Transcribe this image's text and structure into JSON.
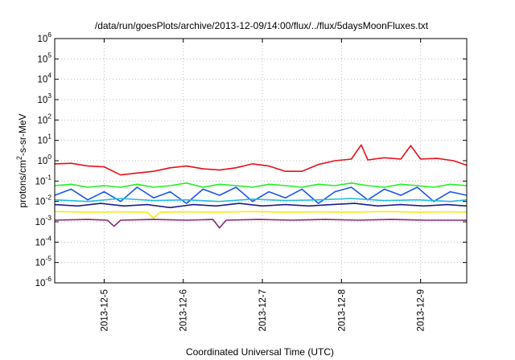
{
  "chart_data": {
    "type": "line",
    "title": "/data/run/goesPlots/archive/2013-12-09/14:00/flux/../flux/5daysMoonFluxes.txt",
    "xlabel": "Coordinated Universal Time (UTC)",
    "ylabel": "protons/cm²-s-sr-MeV",
    "ylabel_parts": {
      "pre": "protons/cm",
      "sup": "2",
      "post": "-s-sr-MeV"
    },
    "y_scale": "log",
    "ylim": [
      1e-06,
      1000000.0
    ],
    "y_ticks": [
      {
        "value": 1e-06,
        "base": "10",
        "exp": "-6"
      },
      {
        "value": 1e-05,
        "base": "10",
        "exp": "-5"
      },
      {
        "value": 0.0001,
        "base": "10",
        "exp": "-4"
      },
      {
        "value": 0.001,
        "base": "10",
        "exp": "-3"
      },
      {
        "value": 0.01,
        "base": "10",
        "exp": "-2"
      },
      {
        "value": 0.1,
        "base": "10",
        "exp": "-1"
      },
      {
        "value": 1,
        "base": "10",
        "exp": "0"
      },
      {
        "value": 10,
        "base": "10",
        "exp": "1"
      },
      {
        "value": 100,
        "base": "10",
        "exp": "2"
      },
      {
        "value": 1000,
        "base": "10",
        "exp": "3"
      },
      {
        "value": 10000,
        "base": "10",
        "exp": "4"
      },
      {
        "value": 100000,
        "base": "10",
        "exp": "5"
      },
      {
        "value": 1000000,
        "base": "10",
        "exp": "6"
      }
    ],
    "xlim": [
      "2013-12-04 09:00",
      "2013-12-09 14:00"
    ],
    "x_ticks": [
      {
        "value": "2013-12-05 00:00",
        "label": "2013-12-5"
      },
      {
        "value": "2013-12-06 00:00",
        "label": "2013-12-6"
      },
      {
        "value": "2013-12-07 00:00",
        "label": "2013-12-7"
      },
      {
        "value": "2013-12-08 00:00",
        "label": "2013-12-8"
      },
      {
        "value": "2013-12-09 00:00",
        "label": "2013-12-9"
      }
    ],
    "grid": true,
    "legend": "none",
    "series": [
      {
        "color": "#e8101a",
        "x": [
          "2013-12-04 09:00",
          "2013-12-04 14:00",
          "2013-12-04 19:00",
          "2013-12-05 00:00",
          "2013-12-05 05:00",
          "2013-12-05 10:00",
          "2013-12-05 15:00",
          "2013-12-05 20:00",
          "2013-12-06 01:00",
          "2013-12-06 06:00",
          "2013-12-06 11:00",
          "2013-12-06 16:00",
          "2013-12-06 21:00",
          "2013-12-07 02:00",
          "2013-12-07 07:00",
          "2013-12-07 12:00",
          "2013-12-07 17:00",
          "2013-12-07 22:00",
          "2013-12-08 03:00",
          "2013-12-08 06:00",
          "2013-12-08 08:00",
          "2013-12-08 13:00",
          "2013-12-08 18:00",
          "2013-12-08 21:00",
          "2013-12-09 00:00",
          "2013-12-09 05:00",
          "2013-12-09 10:00",
          "2013-12-09 14:00"
        ],
        "values": [
          0.7,
          0.75,
          0.55,
          0.5,
          0.2,
          0.25,
          0.3,
          0.45,
          0.55,
          0.4,
          0.35,
          0.45,
          0.7,
          0.55,
          0.3,
          0.3,
          0.65,
          1.0,
          1.2,
          6.0,
          1.1,
          1.4,
          1.2,
          5.5,
          1.2,
          1.3,
          1.0,
          0.6
        ]
      },
      {
        "color": "#22ee22",
        "x": [
          "2013-12-04 09:00",
          "2013-12-04 14:00",
          "2013-12-04 19:00",
          "2013-12-05 00:00",
          "2013-12-05 05:00",
          "2013-12-05 10:00",
          "2013-12-05 15:00",
          "2013-12-05 20:00",
          "2013-12-06 01:00",
          "2013-12-06 06:00",
          "2013-12-06 11:00",
          "2013-12-06 16:00",
          "2013-12-06 21:00",
          "2013-12-07 02:00",
          "2013-12-07 07:00",
          "2013-12-07 12:00",
          "2013-12-07 17:00",
          "2013-12-07 22:00",
          "2013-12-08 03:00",
          "2013-12-08 08:00",
          "2013-12-08 13:00",
          "2013-12-08 18:00",
          "2013-12-08 23:00",
          "2013-12-09 04:00",
          "2013-12-09 09:00",
          "2013-12-09 14:00"
        ],
        "values": [
          0.06,
          0.07,
          0.05,
          0.06,
          0.05,
          0.07,
          0.05,
          0.06,
          0.08,
          0.05,
          0.07,
          0.06,
          0.05,
          0.07,
          0.06,
          0.05,
          0.07,
          0.06,
          0.08,
          0.06,
          0.05,
          0.07,
          0.06,
          0.05,
          0.07,
          0.06
        ]
      },
      {
        "color": "#1a55ee",
        "x": [
          "2013-12-04 09:00",
          "2013-12-04 14:00",
          "2013-12-04 19:00",
          "2013-12-05 00:00",
          "2013-12-05 05:00",
          "2013-12-05 10:00",
          "2013-12-05 15:00",
          "2013-12-05 20:00",
          "2013-12-06 01:00",
          "2013-12-06 06:00",
          "2013-12-06 11:00",
          "2013-12-06 16:00",
          "2013-12-06 21:00",
          "2013-12-07 02:00",
          "2013-12-07 07:00",
          "2013-12-07 12:00",
          "2013-12-07 17:00",
          "2013-12-07 22:00",
          "2013-12-08 03:00",
          "2013-12-08 08:00",
          "2013-12-08 13:00",
          "2013-12-08 18:00",
          "2013-12-08 23:00",
          "2013-12-09 04:00",
          "2013-12-09 09:00",
          "2013-12-09 14:00"
        ],
        "values": [
          0.02,
          0.04,
          0.012,
          0.03,
          0.01,
          0.05,
          0.015,
          0.03,
          0.008,
          0.04,
          0.02,
          0.05,
          0.01,
          0.03,
          0.015,
          0.04,
          0.008,
          0.03,
          0.05,
          0.012,
          0.04,
          0.02,
          0.05,
          0.01,
          0.03,
          0.02
        ]
      },
      {
        "color": "#22bcdd",
        "x": [
          "2013-12-04 09:00",
          "2013-12-04 19:00",
          "2013-12-05 05:00",
          "2013-12-05 15:00",
          "2013-12-06 01:00",
          "2013-12-06 11:00",
          "2013-12-06 21:00",
          "2013-12-07 07:00",
          "2013-12-07 17:00",
          "2013-12-08 03:00",
          "2013-12-08 13:00",
          "2013-12-08 23:00",
          "2013-12-09 09:00",
          "2013-12-09 14:00"
        ],
        "values": [
          0.012,
          0.01,
          0.014,
          0.011,
          0.012,
          0.01,
          0.013,
          0.011,
          0.012,
          0.014,
          0.011,
          0.012,
          0.01,
          0.012
        ]
      },
      {
        "color": "#1b1b8c",
        "x": [
          "2013-12-04 09:00",
          "2013-12-04 16:00",
          "2013-12-04 23:00",
          "2013-12-05 06:00",
          "2013-12-05 13:00",
          "2013-12-05 20:00",
          "2013-12-06 03:00",
          "2013-12-06 10:00",
          "2013-12-06 17:00",
          "2013-12-07 00:00",
          "2013-12-07 07:00",
          "2013-12-07 14:00",
          "2013-12-07 21:00",
          "2013-12-08 04:00",
          "2013-12-08 11:00",
          "2013-12-08 18:00",
          "2013-12-09 01:00",
          "2013-12-09 08:00",
          "2013-12-09 14:00"
        ],
        "values": [
          0.007,
          0.006,
          0.008,
          0.006,
          0.007,
          0.005,
          0.007,
          0.006,
          0.008,
          0.006,
          0.007,
          0.006,
          0.007,
          0.008,
          0.006,
          0.007,
          0.006,
          0.007,
          0.006
        ]
      },
      {
        "color": "#f4f000",
        "x": [
          "2013-12-04 09:00",
          "2013-12-04 19:00",
          "2013-12-05 05:00",
          "2013-12-05 13:00",
          "2013-12-05 15:00",
          "2013-12-05 17:00",
          "2013-12-06 01:00",
          "2013-12-06 11:00",
          "2013-12-06 21:00",
          "2013-12-07 07:00",
          "2013-12-07 17:00",
          "2013-12-08 03:00",
          "2013-12-08 13:00",
          "2013-12-08 23:00",
          "2013-12-09 09:00",
          "2013-12-09 14:00"
        ],
        "values": [
          0.0032,
          0.003,
          0.0031,
          0.003,
          0.0015,
          0.003,
          0.0031,
          0.003,
          0.0032,
          0.003,
          0.0031,
          0.003,
          0.0032,
          0.003,
          0.0031,
          0.003
        ]
      },
      {
        "color": "#8a2a6e",
        "x": [
          "2013-12-04 09:00",
          "2013-12-04 19:00",
          "2013-12-05 01:00",
          "2013-12-05 03:00",
          "2013-12-05 05:00",
          "2013-12-05 15:00",
          "2013-12-06 01:00",
          "2013-12-06 09:00",
          "2013-12-06 11:00",
          "2013-12-06 13:00",
          "2013-12-06 23:00",
          "2013-12-07 09:00",
          "2013-12-07 19:00",
          "2013-12-08 05:00",
          "2013-12-08 15:00",
          "2013-12-09 01:00",
          "2013-12-09 14:00"
        ],
        "values": [
          0.0012,
          0.0013,
          0.0012,
          0.0006,
          0.0012,
          0.0013,
          0.0012,
          0.0013,
          0.0005,
          0.0012,
          0.0013,
          0.0012,
          0.0013,
          0.0012,
          0.0013,
          0.0012,
          0.0012
        ]
      }
    ]
  }
}
